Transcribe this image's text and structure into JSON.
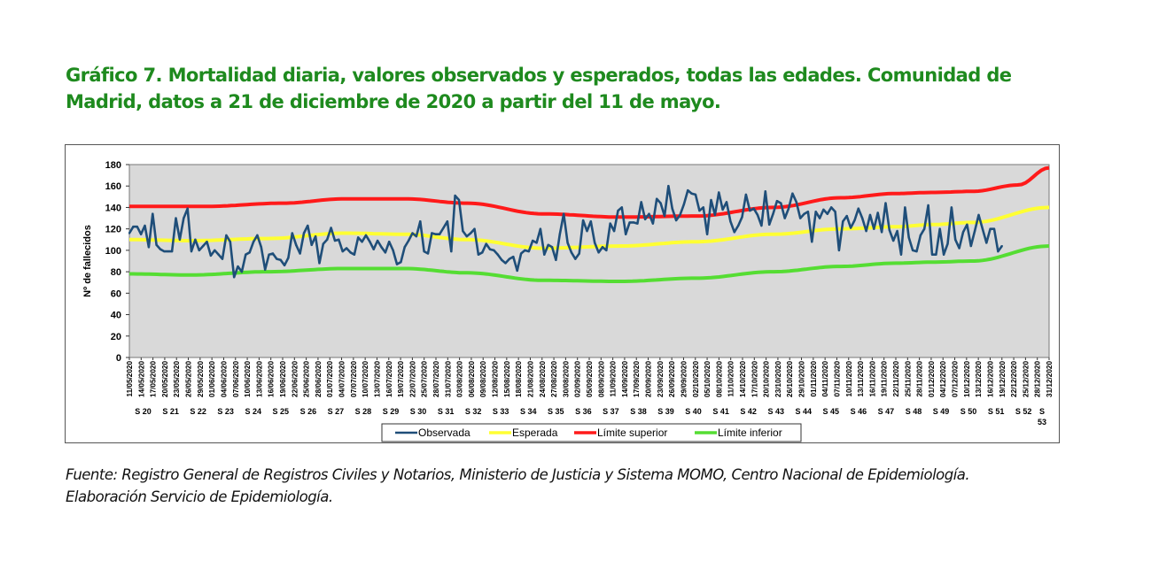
{
  "title": "Gráfico 7. Mortalidad diaria, valores observados y esperados, todas las edades. Comunidad de Madrid, datos a 21 de diciembre de 2020 a partir del 11 de mayo.",
  "source_line1": "Fuente: Registro General de Registros Civiles y Notarios, Ministerio de Justicia y Sistema MOMO, Centro Nacional de Epidemiología.",
  "source_line2": "Elaboración Servicio de Epidemiología.",
  "chart_data": {
    "type": "line",
    "title": "",
    "ylabel": "Nº de fallecidos",
    "xlabel": "",
    "ylim": [
      0,
      180
    ],
    "yticks": [
      0,
      20,
      40,
      60,
      80,
      100,
      120,
      140,
      160,
      180
    ],
    "x_start": "11/05/2020",
    "x_end": "31/12/2020",
    "x_tick_labels": [
      "11/05/2020",
      "14/05/2020",
      "17/05/2020",
      "20/05/2020",
      "23/05/2020",
      "26/05/2020",
      "29/05/2020",
      "01/06/2020",
      "04/06/2020",
      "07/06/2020",
      "10/06/2020",
      "13/06/2020",
      "16/06/2020",
      "19/06/2020",
      "22/06/2020",
      "25/06/2020",
      "28/06/2020",
      "01/07/2020",
      "04/07/2020",
      "07/07/2020",
      "10/07/2020",
      "13/07/2020",
      "16/07/2020",
      "19/07/2020",
      "22/07/2020",
      "25/07/2020",
      "28/07/2020",
      "31/07/2020",
      "03/08/2020",
      "06/08/2020",
      "09/08/2020",
      "12/08/2020",
      "15/08/2020",
      "18/08/2020",
      "21/08/2020",
      "24/08/2020",
      "27/08/2020",
      "30/08/2020",
      "02/09/2020",
      "05/09/2020",
      "08/09/2020",
      "11/09/2020",
      "14/09/2020",
      "17/09/2020",
      "20/09/2020",
      "23/09/2020",
      "26/09/2020",
      "29/09/2020",
      "02/10/2020",
      "05/10/2020",
      "08/10/2020",
      "11/10/2020",
      "14/10/2020",
      "17/10/2020",
      "20/10/2020",
      "23/10/2020",
      "26/10/2020",
      "29/10/2020",
      "01/11/2020",
      "04/11/2020",
      "07/11/2020",
      "10/11/2020",
      "13/11/2020",
      "16/11/2020",
      "19/11/2020",
      "22/11/2020",
      "25/11/2020",
      "28/11/2020",
      "01/12/2020",
      "04/12/2020",
      "07/12/2020",
      "10/12/2020",
      "13/12/2020",
      "16/12/2020",
      "19/12/2020",
      "22/12/2020",
      "25/12/2020",
      "28/12/2020",
      "31/12/2020"
    ],
    "week_labels": [
      "S 20",
      "S 21",
      "S 22",
      "S 23",
      "S 24",
      "S 25",
      "S 26",
      "S 27",
      "S 28",
      "S 29",
      "S 30",
      "S 31",
      "S 32",
      "S 33",
      "S 34",
      "S 35",
      "S 36",
      "S 37",
      "S 38",
      "S 39",
      "S 40",
      "S 41",
      "S 42",
      "S 43",
      "S 44",
      "S 45",
      "S 46",
      "S 47",
      "S 48",
      "S 49",
      "S 50",
      "S 51",
      "S 52",
      "S 53"
    ],
    "legend": [
      "Observada",
      "Esperada",
      "Límite superior",
      "Límite inferior"
    ],
    "legend_position": "bottom",
    "series": [
      {
        "name": "Observada",
        "color": "#1f4e79",
        "values": [
          116,
          122,
          122,
          115,
          123,
          103,
          134,
          105,
          101,
          99,
          99,
          99,
          130,
          110,
          130,
          139,
          99,
          110,
          100,
          104,
          108,
          95,
          100,
          96,
          92,
          114,
          108,
          75,
          85,
          80,
          96,
          98,
          108,
          114,
          103,
          82,
          96,
          97,
          92,
          91,
          86,
          93,
          116,
          105,
          97,
          116,
          123,
          105,
          113,
          88,
          106,
          110,
          121,
          109,
          110,
          99,
          102,
          98,
          96,
          112,
          108,
          114,
          108,
          101,
          109,
          103,
          98,
          108,
          100,
          87,
          89,
          103,
          109,
          116,
          113,
          127,
          99,
          97,
          116,
          115,
          115,
          121,
          127,
          99,
          151,
          147,
          118,
          113,
          116,
          120,
          96,
          98,
          106,
          101,
          100,
          96,
          91,
          88,
          92,
          94,
          81,
          97,
          100,
          99,
          109,
          107,
          120,
          96,
          105,
          103,
          91,
          115,
          134,
          107,
          98,
          92,
          97,
          128,
          118,
          127,
          107,
          98,
          103,
          100,
          125,
          118,
          137,
          140,
          115,
          126,
          126,
          125,
          145,
          129,
          134,
          125,
          148,
          144,
          132,
          160,
          139,
          128,
          133,
          143,
          156,
          153,
          152,
          137,
          140,
          115,
          147,
          133,
          154,
          138,
          145,
          127,
          117,
          123,
          131,
          152,
          137,
          139,
          133,
          123,
          155,
          124,
          134,
          146,
          144,
          130,
          139,
          153,
          145,
          130,
          134,
          136,
          108,
          136,
          130,
          138,
          134,
          140,
          136,
          100,
          127,
          132,
          121,
          128,
          139,
          130,
          118,
          133,
          120,
          135,
          117,
          144,
          119,
          109,
          118,
          96,
          140,
          112,
          100,
          99,
          114,
          120,
          142,
          96,
          96,
          120,
          96,
          106,
          140,
          110,
          102,
          117,
          124,
          104,
          118,
          133,
          120,
          107,
          120,
          120,
          99,
          104
        ]
      },
      {
        "name": "Esperada",
        "color": "#ffff33",
        "keyframes": [
          [
            0,
            110
          ],
          [
            20,
            109
          ],
          [
            45,
            111
          ],
          [
            70,
            116
          ],
          [
            90,
            115
          ],
          [
            110,
            110
          ],
          [
            135,
            102
          ],
          [
            160,
            104
          ],
          [
            185,
            108
          ],
          [
            210,
            115
          ],
          [
            232,
            120
          ],
          [
            250,
            122
          ],
          [
            262,
            124
          ],
          [
            275,
            126
          ],
          [
            300,
            140
          ]
        ]
      },
      {
        "name": "Límite superior",
        "color": "#ff1a1a",
        "keyframes": [
          [
            0,
            141
          ],
          [
            25,
            141
          ],
          [
            50,
            144
          ],
          [
            70,
            148
          ],
          [
            90,
            148
          ],
          [
            110,
            144
          ],
          [
            135,
            134
          ],
          [
            160,
            131
          ],
          [
            185,
            132
          ],
          [
            210,
            140
          ],
          [
            232,
            149
          ],
          [
            250,
            153
          ],
          [
            262,
            154
          ],
          [
            275,
            155
          ],
          [
            290,
            161
          ],
          [
            300,
            177
          ]
        ]
      },
      {
        "name": "Límite inferior",
        "color": "#55dd33",
        "keyframes": [
          [
            0,
            78
          ],
          [
            20,
            77
          ],
          [
            45,
            80
          ],
          [
            70,
            83
          ],
          [
            90,
            83
          ],
          [
            110,
            79
          ],
          [
            135,
            72
          ],
          [
            160,
            71
          ],
          [
            185,
            74
          ],
          [
            210,
            80
          ],
          [
            232,
            85
          ],
          [
            250,
            88
          ],
          [
            262,
            89
          ],
          [
            275,
            90
          ],
          [
            300,
            104
          ]
        ]
      }
    ]
  }
}
